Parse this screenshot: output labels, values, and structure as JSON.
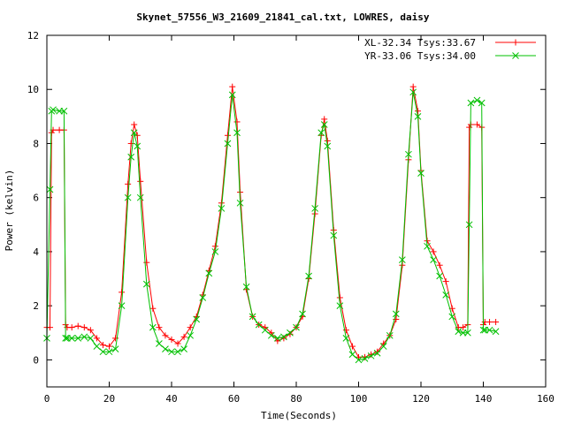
{
  "chart_data": {
    "type": "line",
    "title": "Skynet_57556_W3_21609_21841_cal.txt, LOWRES, daisy",
    "xlabel": "Time(Seconds)",
    "ylabel": "Power (kelvin)",
    "xlim": [
      0,
      160
    ],
    "ylim": [
      -1,
      12
    ],
    "xticks": [
      0,
      20,
      40,
      60,
      80,
      100,
      120,
      140,
      160
    ],
    "yticks": [
      0,
      2,
      4,
      6,
      8,
      10,
      12
    ],
    "xtick_labels": [
      "0",
      "20",
      "40",
      "60",
      "80",
      "100",
      "120",
      "140",
      "160"
    ],
    "ytick_labels": [
      "0",
      "2",
      "4",
      "6",
      "8",
      "10",
      "12"
    ],
    "grid": false,
    "legend_position": "top-right",
    "series": [
      {
        "name": "XL-32.34 Tsys:33.67",
        "color": "#ff0000",
        "marker": "plus",
        "x": [
          0,
          1,
          1.5,
          2,
          4,
          5.5,
          6,
          6.5,
          8,
          10,
          12,
          14,
          16,
          18,
          20,
          22,
          24,
          26,
          27,
          28,
          29,
          30,
          32,
          34,
          36,
          38,
          40,
          42,
          44,
          46,
          48,
          50,
          52,
          54,
          56,
          58,
          59.5,
          61,
          62,
          64,
          66,
          68,
          70,
          72,
          74,
          76,
          78,
          80,
          82,
          84,
          86,
          88,
          89,
          90,
          92,
          94,
          96,
          98,
          100,
          102,
          104,
          106,
          108,
          110,
          112,
          114,
          116,
          117.5,
          119,
          120,
          122,
          124,
          126,
          128,
          130,
          132,
          133.5,
          135,
          135.5,
          136,
          138,
          139.5,
          140,
          140.5,
          142,
          144
        ],
        "y": [
          1.2,
          1.2,
          8.4,
          8.5,
          8.5,
          8.5,
          1.3,
          1.2,
          1.2,
          1.25,
          1.2,
          1.1,
          0.8,
          0.55,
          0.5,
          0.8,
          2.5,
          6.5,
          8.0,
          8.7,
          8.3,
          6.6,
          3.6,
          1.9,
          1.2,
          0.9,
          0.75,
          0.6,
          0.85,
          1.2,
          1.6,
          2.4,
          3.3,
          4.2,
          5.8,
          8.3,
          10.1,
          8.8,
          6.2,
          2.6,
          1.6,
          1.3,
          1.2,
          1.0,
          0.7,
          0.8,
          0.95,
          1.2,
          1.6,
          3.0,
          5.4,
          8.3,
          8.9,
          8.1,
          4.8,
          2.3,
          1.1,
          0.5,
          0.1,
          0.1,
          0.2,
          0.3,
          0.6,
          0.9,
          1.5,
          3.5,
          7.4,
          10.1,
          9.2,
          7.0,
          4.4,
          4.0,
          3.5,
          2.9,
          1.9,
          1.2,
          1.2,
          1.3,
          8.6,
          8.7,
          8.7,
          8.6,
          1.3,
          1.4,
          1.4,
          1.4
        ]
      },
      {
        "name": "YR-33.06 Tsys:34.00",
        "color": "#00c000",
        "marker": "x",
        "x": [
          0,
          1,
          1.5,
          2,
          4,
          5.5,
          6,
          6.5,
          8,
          10,
          12,
          14,
          16,
          18,
          20,
          22,
          24,
          26,
          27,
          28,
          29,
          30,
          32,
          34,
          36,
          38,
          40,
          42,
          44,
          46,
          48,
          50,
          52,
          54,
          56,
          58,
          59.5,
          61,
          62,
          64,
          66,
          68,
          70,
          72,
          74,
          76,
          78,
          80,
          82,
          84,
          86,
          88,
          89,
          90,
          92,
          94,
          96,
          98,
          100,
          102,
          104,
          106,
          108,
          110,
          112,
          114,
          116,
          117.5,
          119,
          120,
          122,
          124,
          126,
          128,
          130,
          132,
          133.5,
          135,
          135.5,
          136,
          138,
          139.5,
          140,
          140.5,
          142,
          144
        ],
        "y": [
          0.8,
          6.3,
          9.2,
          9.25,
          9.2,
          9.2,
          0.8,
          0.8,
          0.8,
          0.8,
          0.85,
          0.8,
          0.5,
          0.3,
          0.3,
          0.4,
          2.0,
          6.0,
          7.5,
          8.4,
          7.9,
          6.0,
          2.8,
          1.2,
          0.6,
          0.4,
          0.3,
          0.3,
          0.4,
          0.9,
          1.5,
          2.3,
          3.2,
          4.0,
          5.6,
          8.0,
          9.8,
          8.4,
          5.8,
          2.7,
          1.6,
          1.3,
          1.1,
          0.9,
          0.8,
          0.85,
          1.0,
          1.2,
          1.7,
          3.1,
          5.6,
          8.4,
          8.7,
          7.9,
          4.6,
          2.0,
          0.8,
          0.2,
          0.0,
          0.05,
          0.15,
          0.25,
          0.5,
          0.9,
          1.7,
          3.7,
          7.6,
          9.9,
          9.0,
          6.9,
          4.2,
          3.7,
          3.1,
          2.4,
          1.6,
          1.05,
          1.0,
          1.0,
          5.0,
          9.5,
          9.6,
          9.5,
          1.1,
          1.1,
          1.1,
          1.05
        ]
      }
    ]
  }
}
